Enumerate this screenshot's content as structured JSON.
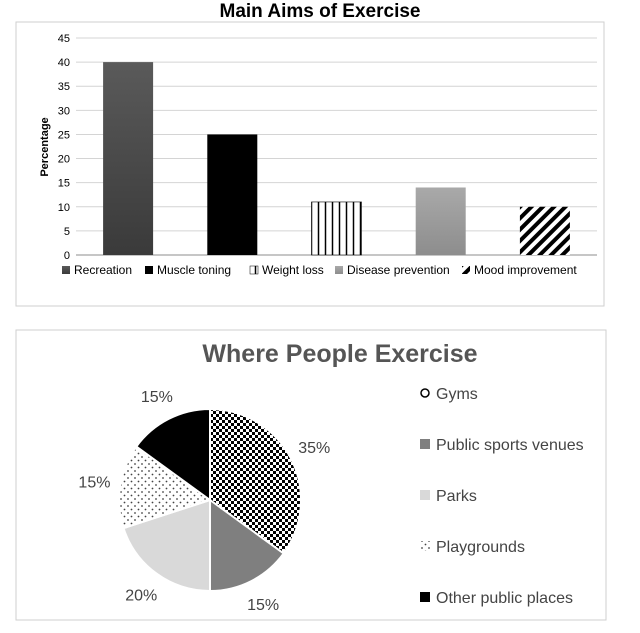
{
  "chart_data": [
    {
      "type": "bar",
      "title": "Main Aims of Exercise",
      "ylabel": "Percentage",
      "xlabel": "",
      "ylim": [
        0,
        45
      ],
      "yticks": [
        0,
        5,
        10,
        15,
        20,
        25,
        30,
        35,
        40,
        45
      ],
      "grid": true,
      "legend_position": "bottom",
      "categories": [
        "Recreation",
        "Muscle toning",
        "Weight loss",
        "Disease prevention",
        "Mood improvement"
      ],
      "values": [
        40,
        25,
        11,
        14,
        10
      ],
      "fills": [
        "gradient-dark",
        "solid-black",
        "vertical-lines",
        "gradient-gray",
        "diagonal-stripes"
      ],
      "colors": [
        "#595959",
        "#000000",
        "#000000",
        "#a6a6a6",
        "#000000"
      ]
    },
    {
      "type": "pie",
      "title": "Where People Exercise",
      "legend_position": "right",
      "categories": [
        "Gyms",
        "Public sports venues",
        "Parks",
        "Playgrounds",
        "Other public places"
      ],
      "values": [
        35,
        15,
        20,
        15,
        15
      ],
      "labels": [
        "35%",
        "15%",
        "20%",
        "15%",
        "15%"
      ],
      "fills": [
        "checkerboard",
        "solid-gray",
        "solid-lightgray",
        "dots",
        "solid-black"
      ],
      "colors": [
        "#000000",
        "#7f7f7f",
        "#d9d9d9",
        "#7f7f7f",
        "#0d0d0d"
      ]
    }
  ]
}
